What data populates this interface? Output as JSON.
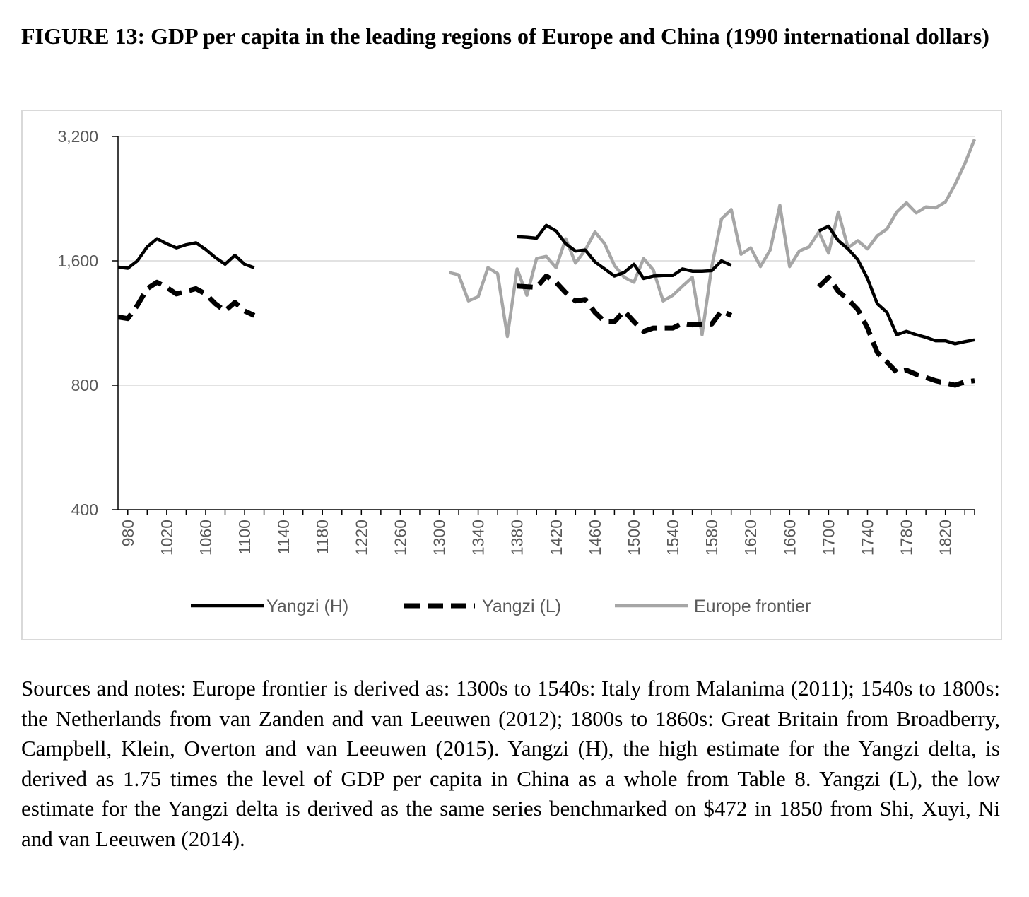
{
  "title": "FIGURE 13: GDP per capita in the leading regions of Europe and China (1990 international dollars)",
  "notes": "Sources and notes: Europe frontier is derived as: 1300s to 1540s: Italy from Malanima (2011); 1540s to 1800s: the Netherlands from van Zanden and van Leeuwen (2012); 1800s to 1860s: Great Britain from Broadberry, Campbell, Klein, Overton and van Leeuwen (2015). Yangzi (H), the high estimate for the Yangzi delta, is derived as 1.75 times the level of GDP per capita in China as a whole from Table 8. Yangzi (L), the low estimate for the Yangzi delta is derived as the same series benchmarked on $472 in 1850 from Shi, Xuyi, Ni and van Leeuwen (2014).",
  "chart_data": {
    "type": "line",
    "title": "",
    "xlabel": "",
    "ylabel": "",
    "y_scale": "log2",
    "ylim": [
      400,
      3200
    ],
    "xlim": [
      970,
      1850
    ],
    "y_ticks": [
      400,
      800,
      1600,
      3200
    ],
    "y_tick_labels": [
      "400",
      "800",
      "1,600",
      "3,200"
    ],
    "x_ticks": [
      980,
      1020,
      1060,
      1100,
      1140,
      1180,
      1220,
      1260,
      1300,
      1340,
      1380,
      1420,
      1460,
      1500,
      1540,
      1580,
      1620,
      1660,
      1700,
      1740,
      1780,
      1820
    ],
    "x_tick_labels": [
      "980",
      "1020",
      "1060",
      "1100",
      "1140",
      "1180",
      "1220",
      "1260",
      "1300",
      "1340",
      "1380",
      "1420",
      "1460",
      "1500",
      "1540",
      "1580",
      "1620",
      "1660",
      "1700",
      "1740",
      "1780",
      "1820"
    ],
    "grid": "horizontal",
    "legend_position": "bottom",
    "series": [
      {
        "name": "Yangzi (H)",
        "color": "#000000",
        "style": "solid",
        "segments": [
          [
            [
              970,
              1545
            ],
            [
              980,
              1535
            ],
            [
              990,
              1600
            ],
            [
              1000,
              1730
            ],
            [
              1010,
              1810
            ],
            [
              1020,
              1760
            ],
            [
              1030,
              1720
            ],
            [
              1040,
              1750
            ],
            [
              1050,
              1770
            ],
            [
              1060,
              1705
            ],
            [
              1070,
              1630
            ],
            [
              1080,
              1570
            ],
            [
              1090,
              1650
            ],
            [
              1100,
              1570
            ],
            [
              1110,
              1540
            ]
          ],
          [
            [
              1380,
              1830
            ],
            [
              1390,
              1825
            ],
            [
              1400,
              1815
            ],
            [
              1410,
              1950
            ],
            [
              1420,
              1890
            ],
            [
              1430,
              1760
            ],
            [
              1440,
              1690
            ],
            [
              1450,
              1700
            ],
            [
              1460,
              1590
            ],
            [
              1470,
              1530
            ],
            [
              1480,
              1470
            ],
            [
              1490,
              1500
            ],
            [
              1500,
              1570
            ],
            [
              1510,
              1450
            ],
            [
              1520,
              1470
            ],
            [
              1530,
              1475
            ],
            [
              1540,
              1475
            ],
            [
              1550,
              1530
            ],
            [
              1560,
              1510
            ],
            [
              1570,
              1510
            ],
            [
              1580,
              1515
            ],
            [
              1590,
              1600
            ],
            [
              1600,
              1560
            ]
          ],
          [
            [
              1690,
              1890
            ],
            [
              1700,
              1940
            ],
            [
              1710,
              1790
            ],
            [
              1720,
              1710
            ],
            [
              1730,
              1610
            ],
            [
              1740,
              1450
            ],
            [
              1750,
              1260
            ],
            [
              1760,
              1200
            ],
            [
              1770,
              1060
            ],
            [
              1780,
              1080
            ],
            [
              1790,
              1060
            ],
            [
              1800,
              1045
            ],
            [
              1810,
              1025
            ],
            [
              1820,
              1025
            ],
            [
              1830,
              1008
            ],
            [
              1840,
              1020
            ],
            [
              1850,
              1030
            ]
          ]
        ]
      },
      {
        "name": "Yangzi (L)",
        "color": "#000000",
        "style": "dashed",
        "segments": [
          [
            [
              970,
              1170
            ],
            [
              980,
              1160
            ],
            [
              990,
              1250
            ],
            [
              1000,
              1370
            ],
            [
              1010,
              1420
            ],
            [
              1020,
              1380
            ],
            [
              1030,
              1330
            ],
            [
              1040,
              1350
            ],
            [
              1050,
              1370
            ],
            [
              1060,
              1330
            ],
            [
              1070,
              1260
            ],
            [
              1080,
              1210
            ],
            [
              1090,
              1270
            ],
            [
              1100,
              1210
            ],
            [
              1110,
              1180
            ]
          ],
          [
            [
              1380,
              1390
            ],
            [
              1390,
              1385
            ],
            [
              1400,
              1380
            ],
            [
              1410,
              1470
            ],
            [
              1420,
              1420
            ],
            [
              1430,
              1340
            ],
            [
              1440,
              1280
            ],
            [
              1450,
              1290
            ],
            [
              1460,
              1200
            ],
            [
              1470,
              1140
            ],
            [
              1480,
              1140
            ],
            [
              1490,
              1210
            ],
            [
              1500,
              1140
            ],
            [
              1510,
              1080
            ],
            [
              1520,
              1100
            ],
            [
              1530,
              1100
            ],
            [
              1540,
              1100
            ],
            [
              1550,
              1130
            ],
            [
              1560,
              1120
            ],
            [
              1570,
              1125
            ],
            [
              1580,
              1125
            ],
            [
              1590,
              1210
            ],
            [
              1600,
              1180
            ]
          ],
          [
            [
              1690,
              1385
            ],
            [
              1700,
              1460
            ],
            [
              1710,
              1350
            ],
            [
              1720,
              1290
            ],
            [
              1730,
              1220
            ],
            [
              1740,
              1100
            ],
            [
              1750,
              960
            ],
            [
              1760,
              910
            ],
            [
              1770,
              860
            ],
            [
              1780,
              870
            ],
            [
              1790,
              850
            ],
            [
              1800,
              835
            ],
            [
              1810,
              820
            ],
            [
              1820,
              810
            ],
            [
              1830,
              800
            ],
            [
              1840,
              815
            ],
            [
              1850,
              820
            ]
          ]
        ]
      },
      {
        "name": "Europe frontier",
        "color": "#a6a6a6",
        "style": "solid",
        "segments": [
          [
            [
              1310,
              1500
            ],
            [
              1320,
              1480
            ],
            [
              1330,
              1280
            ],
            [
              1340,
              1310
            ],
            [
              1350,
              1540
            ],
            [
              1360,
              1490
            ],
            [
              1370,
              1050
            ],
            [
              1380,
              1530
            ],
            [
              1390,
              1320
            ],
            [
              1400,
              1620
            ],
            [
              1410,
              1640
            ],
            [
              1420,
              1540
            ],
            [
              1430,
              1810
            ],
            [
              1440,
              1580
            ],
            [
              1450,
              1700
            ],
            [
              1460,
              1880
            ],
            [
              1470,
              1760
            ],
            [
              1480,
              1560
            ],
            [
              1490,
              1460
            ],
            [
              1500,
              1420
            ],
            [
              1510,
              1620
            ],
            [
              1520,
              1520
            ],
            [
              1530,
              1280
            ],
            [
              1540,
              1320
            ],
            [
              1550,
              1390
            ],
            [
              1560,
              1460
            ],
            [
              1570,
              1060
            ],
            [
              1580,
              1550
            ],
            [
              1590,
              2020
            ],
            [
              1600,
              2130
            ],
            [
              1610,
              1660
            ],
            [
              1620,
              1720
            ],
            [
              1630,
              1550
            ],
            [
              1640,
              1700
            ],
            [
              1650,
              2180
            ],
            [
              1660,
              1550
            ],
            [
              1670,
              1690
            ],
            [
              1680,
              1730
            ],
            [
              1690,
              1880
            ],
            [
              1700,
              1670
            ],
            [
              1710,
              2100
            ],
            [
              1720,
              1720
            ],
            [
              1730,
              1790
            ],
            [
              1740,
              1710
            ],
            [
              1750,
              1840
            ],
            [
              1760,
              1910
            ],
            [
              1770,
              2100
            ],
            [
              1780,
              2210
            ],
            [
              1790,
              2090
            ],
            [
              1800,
              2160
            ],
            [
              1810,
              2150
            ],
            [
              1820,
              2220
            ],
            [
              1830,
              2450
            ],
            [
              1840,
              2750
            ],
            [
              1850,
              3150
            ]
          ]
        ]
      }
    ]
  }
}
